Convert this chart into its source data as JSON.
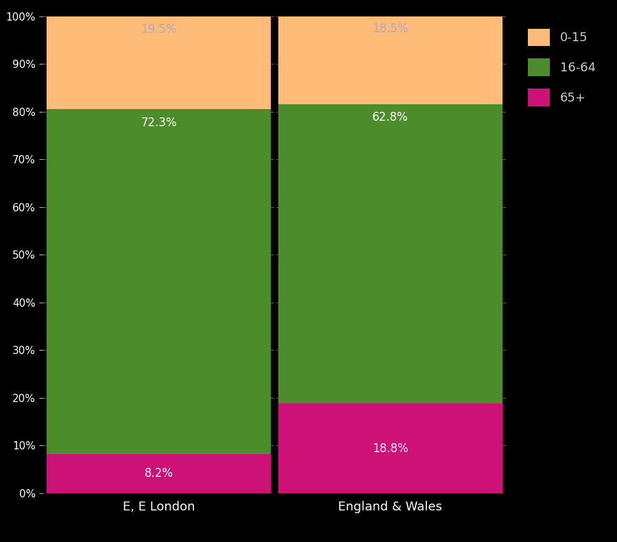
{
  "categories": [
    "E, E London",
    "England & Wales"
  ],
  "segments": {
    "65+": [
      8.2,
      18.8
    ],
    "16-64": [
      72.3,
      62.8
    ],
    "0-15": [
      19.5,
      18.5
    ]
  },
  "colors": {
    "0-15": "#FFBB77",
    "16-64": "#4C8C2B",
    "65+": "#CC1177"
  },
  "labels": {
    "65+": [
      "8.2%",
      "18.8%"
    ],
    "16-64": [
      "72.3%",
      "62.8%"
    ],
    "0-15": [
      "19.5%",
      "18.5%"
    ]
  },
  "background_color": "#000000",
  "text_color": "#FFFFFF",
  "label_color_dark": "#AAAACC",
  "bar_edge_color": "#000000",
  "legend_labels": [
    "0-15",
    "16-64",
    "65+"
  ],
  "yticks": [
    0,
    10,
    20,
    30,
    40,
    50,
    60,
    70,
    80,
    90,
    100
  ],
  "ylim": [
    0,
    100
  ],
  "bar_width": 0.97,
  "figsize": [
    9.0,
    7.9
  ],
  "dpi": 100
}
